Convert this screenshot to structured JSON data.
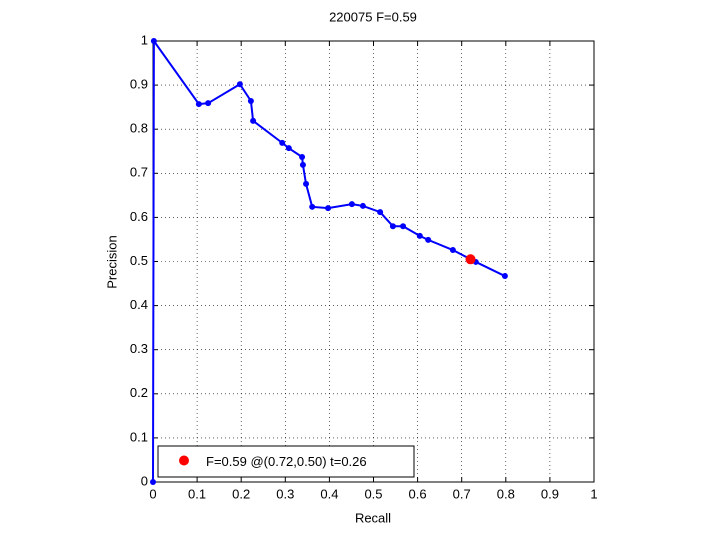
{
  "chart_data": {
    "type": "line",
    "title": "220075 F=0.59",
    "xlabel": "Recall",
    "ylabel": "Precision",
    "xlim": [
      0,
      1
    ],
    "ylim": [
      0,
      1
    ],
    "xticks": [
      0,
      0.1,
      0.2,
      0.3,
      0.4,
      0.5,
      0.6,
      0.7,
      0.8,
      0.9,
      1
    ],
    "yticks": [
      0,
      0.1,
      0.2,
      0.3,
      0.4,
      0.5,
      0.6,
      0.7,
      0.8,
      0.9,
      1
    ],
    "grid": true,
    "legend": "lower left",
    "series": [
      {
        "color": "#0000ff",
        "marker": "dot",
        "x": [
          0,
          0.002,
          0.104,
          0.125,
          0.197,
          0.222,
          0.227,
          0.293,
          0.308,
          0.338,
          0.34,
          0.347,
          0.361,
          0.397,
          0.451,
          0.476,
          0.515,
          0.544,
          0.567,
          0.605,
          0.624,
          0.68,
          0.732,
          0.798
        ],
        "values": [
          0,
          1,
          0.857,
          0.859,
          0.902,
          0.864,
          0.819,
          0.769,
          0.757,
          0.737,
          0.719,
          0.676,
          0.624,
          0.621,
          0.63,
          0.626,
          0.612,
          0.58,
          0.58,
          0.558,
          0.549,
          0.526,
          0.499,
          0.467
        ]
      },
      {
        "name": "F=0.59 @(0.72,0.50) t=0.26",
        "color": "#ff0000",
        "marker": "big-dot",
        "x": [
          0.72
        ],
        "values": [
          0.505
        ]
      }
    ]
  }
}
